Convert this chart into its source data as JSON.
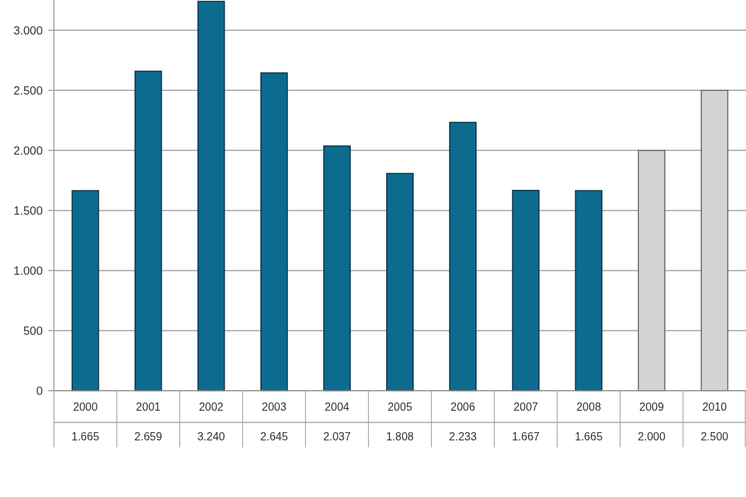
{
  "chart_data": {
    "type": "bar",
    "categories": [
      "2000",
      "2001",
      "2002",
      "2003",
      "2004",
      "2005",
      "2006",
      "2007",
      "2008",
      "2009",
      "2010"
    ],
    "values": [
      1665,
      2659,
      3240,
      2645,
      2037,
      1808,
      2233,
      1667,
      1665,
      2000,
      2500
    ],
    "colors": [
      "#0c6b8e",
      "#0c6b8e",
      "#0c6b8e",
      "#0c6b8e",
      "#0c6b8e",
      "#0c6b8e",
      "#0c6b8e",
      "#0c6b8e",
      "#0c6b8e",
      "#d3d3d3",
      "#d3d3d3"
    ],
    "value_labels": [
      "1.665",
      "2.659",
      "3.240",
      "2.645",
      "2.037",
      "1.808",
      "2.233",
      "1.667",
      "1.665",
      "2.000",
      "2.500"
    ],
    "ylim": [
      0,
      3240
    ],
    "yticks": [
      0,
      500,
      {
        "value": 1000,
        "label": "1.000"
      },
      {
        "value": 1500,
        "label": "1.500"
      },
      {
        "value": 2000,
        "label": "2.000"
      },
      {
        "value": 2500,
        "label": "2.500"
      },
      {
        "value": 3000,
        "label": "3.000"
      }
    ],
    "grid": "y"
  }
}
